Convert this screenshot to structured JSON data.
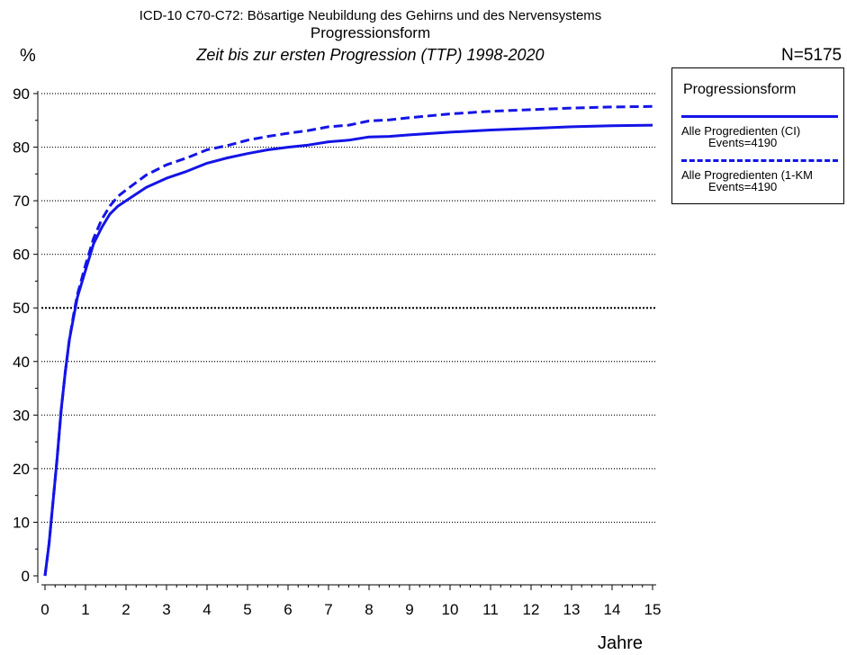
{
  "header": {
    "title": "ICD-10 C70-C72: Bösartige Neubildung des Gehirns und des Nervensystems",
    "subtitle": "Progressionsform",
    "subtitle2": "Zeit bis zur ersten Progression (TTP) 1998-2020",
    "y_unit": "%",
    "n_label": "N=5175"
  },
  "legend": {
    "title": "Progressionsform",
    "items": [
      {
        "label": "Alle Progredienten (CI)",
        "events": "Events=4190",
        "style": "solid",
        "color": "#1414e6"
      },
      {
        "label": "Alle Progredienten (1-KM",
        "events": "Events=4190",
        "style": "dashed",
        "color": "#1414e6"
      }
    ]
  },
  "chart_data": {
    "type": "line",
    "title": "Zeit bis zur ersten Progression (TTP) 1998-2020",
    "xlabel": "Jahre",
    "ylabel": "%",
    "xlim": [
      0,
      15
    ],
    "ylim": [
      0,
      90
    ],
    "xticks": [
      0,
      1,
      2,
      3,
      4,
      5,
      6,
      7,
      8,
      9,
      10,
      11,
      12,
      13,
      14,
      15
    ],
    "yticks": [
      0,
      10,
      20,
      30,
      40,
      50,
      60,
      70,
      80,
      90
    ],
    "grid": "horizontal dotted",
    "legend_position": "right",
    "series": [
      {
        "name": "Alle Progredienten (CI)",
        "style": "solid",
        "color": "#1414e6",
        "x": [
          0,
          0.1,
          0.2,
          0.3,
          0.4,
          0.5,
          0.6,
          0.7,
          0.8,
          1.0,
          1.2,
          1.4,
          1.6,
          1.8,
          2.0,
          2.5,
          3.0,
          3.5,
          4.0,
          4.5,
          5.0,
          5.5,
          6.0,
          6.5,
          7.0,
          7.5,
          8.0,
          8.5,
          9.0,
          10.0,
          11.0,
          12.0,
          13.0,
          14.0,
          15.0
        ],
        "values": [
          0,
          6,
          14,
          22,
          31,
          38,
          44,
          48,
          52,
          57,
          62,
          65,
          67.5,
          69,
          70,
          72.5,
          74.2,
          75.5,
          77,
          78,
          78.8,
          79.5,
          80,
          80.4,
          81,
          81.3,
          81.9,
          82,
          82.3,
          82.8,
          83.2,
          83.5,
          83.8,
          84,
          84.1
        ]
      },
      {
        "name": "Alle Progredienten (1-KM",
        "style": "dashed",
        "color": "#1414e6",
        "x": [
          0,
          0.1,
          0.2,
          0.3,
          0.4,
          0.5,
          0.6,
          0.7,
          0.8,
          1.0,
          1.2,
          1.4,
          1.6,
          1.8,
          2.0,
          2.5,
          3.0,
          3.5,
          4.0,
          4.5,
          5.0,
          5.5,
          6.0,
          6.5,
          7.0,
          7.5,
          8.0,
          8.5,
          9.0,
          10.0,
          11.0,
          12.0,
          13.0,
          14.0,
          15.0
        ],
        "values": [
          0,
          6,
          14,
          22,
          31,
          38,
          44,
          48.5,
          52.5,
          58,
          63,
          66.5,
          69,
          70.8,
          72,
          74.8,
          76.7,
          78,
          79.5,
          80.3,
          81.3,
          82,
          82.6,
          83.1,
          83.8,
          84.1,
          84.9,
          85.1,
          85.5,
          86.2,
          86.7,
          87,
          87.3,
          87.5,
          87.6
        ]
      }
    ]
  }
}
